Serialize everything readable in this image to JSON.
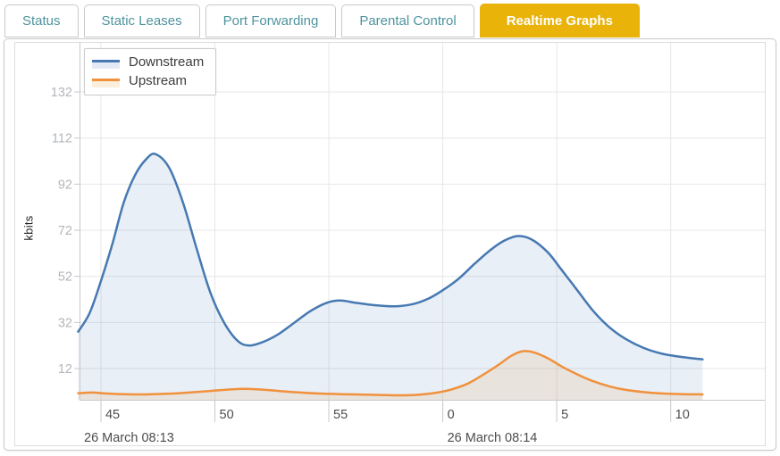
{
  "tabs": [
    {
      "label": "Status",
      "active": false
    },
    {
      "label": "Static Leases",
      "active": false
    },
    {
      "label": "Port Forwarding",
      "active": false
    },
    {
      "label": "Parental Control",
      "active": false
    },
    {
      "label": "Realtime Graphs",
      "active": true
    }
  ],
  "ui_colors": {
    "tab_text": "#4e949e",
    "tab_active_bg": "#e9b30a",
    "tab_active_text": "#ffffff",
    "tab_border": "#c9c9c9",
    "panel_border": "#c9c9c9",
    "widget_border": "#dddddd"
  },
  "chart_data": {
    "type": "area",
    "title": "",
    "xlabel": "",
    "ylabel": "kbits",
    "grid": true,
    "legend_position": "top-left",
    "x_range": [
      44.06,
      74.13
    ],
    "y_range": [
      -1.93,
      153.3
    ],
    "y_ticks": [
      {
        "value": 12,
        "label": "12"
      },
      {
        "value": 32,
        "label": "32"
      },
      {
        "value": 52,
        "label": "52"
      },
      {
        "value": 72,
        "label": "72"
      },
      {
        "value": 92,
        "label": "92"
      },
      {
        "value": 112,
        "label": "112"
      },
      {
        "value": 132,
        "label": "132"
      }
    ],
    "x_ticks": [
      {
        "t": 45,
        "label": "45"
      },
      {
        "t": 50,
        "label": "50"
      },
      {
        "t": 55,
        "label": "55"
      },
      {
        "t": 60,
        "label": "0"
      },
      {
        "t": 65,
        "label": "5"
      },
      {
        "t": 70,
        "label": "10"
      }
    ],
    "x_date_labels": [
      {
        "t": 44.06,
        "label": "26 March 08:13"
      },
      {
        "t": 60,
        "label": "26 March 08:14"
      }
    ],
    "axis_colors": {
      "grid": "#e7e7e7",
      "axis_border": "#c8c8c8",
      "y_tick_text": "#b3b6ba",
      "x_tick_text": "#4d4d4d"
    },
    "series": [
      {
        "name": "Downstream",
        "line_color": "#4679b2",
        "fill_color": "rgba(70,121,178,0.12)",
        "legend_fill": "#e3eaf6",
        "points": [
          [
            44.0,
            28
          ],
          [
            44.5,
            36
          ],
          [
            45,
            50
          ],
          [
            45.5,
            66
          ],
          [
            46,
            84
          ],
          [
            46.5,
            96
          ],
          [
            47,
            103
          ],
          [
            47.4,
            105
          ],
          [
            48,
            99
          ],
          [
            48.6,
            84
          ],
          [
            49.2,
            64
          ],
          [
            49.8,
            45
          ],
          [
            50.4,
            32
          ],
          [
            51,
            24
          ],
          [
            51.5,
            22
          ],
          [
            52.1,
            23.5
          ],
          [
            52.8,
            27
          ],
          [
            53.5,
            32
          ],
          [
            54.2,
            37
          ],
          [
            54.9,
            40.5
          ],
          [
            55.5,
            41.5
          ],
          [
            56.2,
            40.5
          ],
          [
            57,
            39.5
          ],
          [
            57.9,
            39
          ],
          [
            58.7,
            40
          ],
          [
            59.4,
            42.5
          ],
          [
            60,
            46
          ],
          [
            60.7,
            51
          ],
          [
            61.4,
            57.5
          ],
          [
            62.1,
            63.5
          ],
          [
            62.7,
            67.5
          ],
          [
            63.3,
            69.5
          ],
          [
            63.9,
            68
          ],
          [
            64.6,
            62.5
          ],
          [
            65.2,
            55
          ],
          [
            65.9,
            46
          ],
          [
            66.6,
            37
          ],
          [
            67.3,
            30
          ],
          [
            68,
            25
          ],
          [
            68.8,
            21
          ],
          [
            69.6,
            18.5
          ],
          [
            70.5,
            17
          ],
          [
            71.4,
            16
          ]
        ]
      },
      {
        "name": "Upstream",
        "line_color": "#f0913c",
        "fill_color": "rgba(240,145,60,0.13)",
        "legend_fill": "#fceedd",
        "points": [
          [
            44.0,
            1.3
          ],
          [
            44.6,
            1.6
          ],
          [
            45.2,
            1.2
          ],
          [
            46,
            0.9
          ],
          [
            47,
            0.8
          ],
          [
            48,
            1.1
          ],
          [
            49,
            1.7
          ],
          [
            49.8,
            2.3
          ],
          [
            50.6,
            2.9
          ],
          [
            51.3,
            3.2
          ],
          [
            52,
            2.9
          ],
          [
            52.8,
            2.3
          ],
          [
            53.6,
            1.7
          ],
          [
            54.5,
            1.2
          ],
          [
            55.5,
            0.9
          ],
          [
            56.5,
            0.7
          ],
          [
            57.5,
            0.5
          ],
          [
            58.3,
            0.4
          ],
          [
            59,
            0.7
          ],
          [
            59.7,
            1.5
          ],
          [
            60.4,
            3
          ],
          [
            61.1,
            5.5
          ],
          [
            61.8,
            9.5
          ],
          [
            62.5,
            14
          ],
          [
            63,
            17.5
          ],
          [
            63.5,
            19.5
          ],
          [
            64,
            19
          ],
          [
            64.6,
            16.5
          ],
          [
            65.2,
            13
          ],
          [
            65.9,
            9.5
          ],
          [
            66.6,
            6.5
          ],
          [
            67.3,
            4.3
          ],
          [
            68,
            2.8
          ],
          [
            68.8,
            1.8
          ],
          [
            69.6,
            1.2
          ],
          [
            70.5,
            0.9
          ],
          [
            71.4,
            0.8
          ]
        ]
      }
    ]
  }
}
